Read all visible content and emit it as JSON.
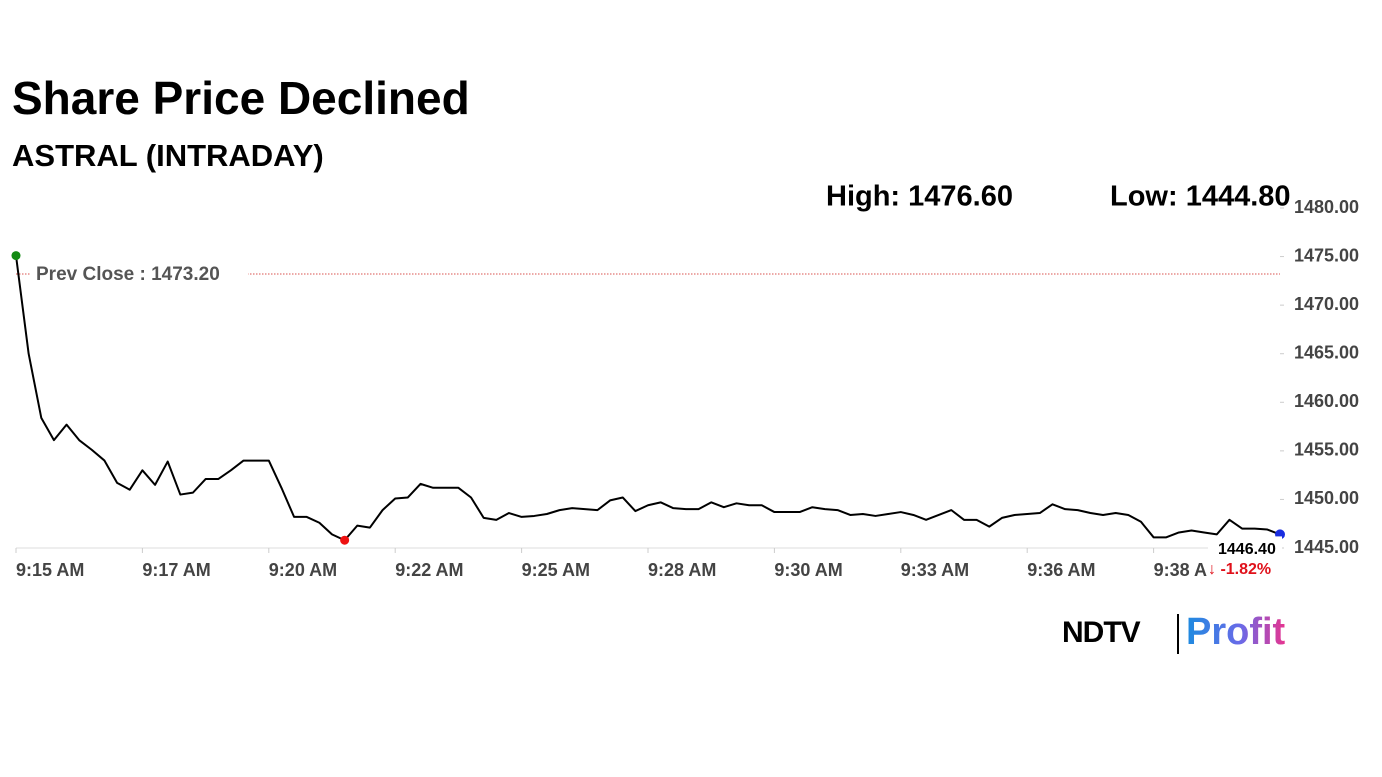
{
  "chart_data": {
    "type": "line",
    "title": "Share Price Declined",
    "subtitle": "ASTRAL (INTRADAY)",
    "high_label": "High: 1476.60",
    "low_label": "Low: 1444.80",
    "categories": [
      "9:15 AM",
      null,
      null,
      null,
      null,
      null,
      null,
      null,
      null,
      null,
      "9:17 AM",
      null,
      null,
      null,
      null,
      null,
      null,
      null,
      null,
      null,
      "9:20 AM",
      null,
      null,
      null,
      null,
      null,
      null,
      null,
      null,
      null,
      "9:22 AM",
      null,
      null,
      null,
      null,
      null,
      null,
      null,
      null,
      null,
      "9:25 AM",
      null,
      null,
      null,
      null,
      null,
      null,
      null,
      null,
      null,
      "9:28 AM",
      null,
      null,
      null,
      null,
      null,
      null,
      null,
      null,
      null,
      "9:30 AM",
      null,
      null,
      null,
      null,
      null,
      null,
      null,
      null,
      null,
      "9:33 AM",
      null,
      null,
      null,
      null,
      null,
      null,
      null,
      null,
      null,
      "9:36 AM",
      null,
      null,
      null,
      null,
      null,
      null,
      null,
      null,
      null,
      "9:38 AM",
      null,
      null,
      null,
      null,
      null,
      null,
      null,
      null,
      null,
      null
    ],
    "series": [
      {
        "name": "ASTRAL",
        "color": "#000000",
        "values": [
          1475.1,
          1465,
          1458.4,
          1456.1,
          1457.7,
          1456.1,
          1455.1,
          1454.0,
          1451.7,
          1451.0,
          1453.0,
          1451.5,
          1453.9,
          1450.5,
          1450.7,
          1452.1,
          1452.1,
          1453.0,
          1454.0,
          1454.0,
          1454.0,
          1451.2,
          1448.2,
          1448.2,
          1447.6,
          1446.4,
          1445.8,
          1447.3,
          1447.1,
          1448.9,
          1450.1,
          1450.2,
          1451.6,
          1451.2,
          1451.2,
          1451.2,
          1450.2,
          1448.1,
          1447.9,
          1448.6,
          1448.2,
          1448.3,
          1448.5,
          1448.9,
          1449.1,
          1449.0,
          1448.9,
          1449.9,
          1450.2,
          1448.8,
          1449.4,
          1449.7,
          1449.1,
          1449.0,
          1449.0,
          1449.7,
          1449.2,
          1449.6,
          1449.4,
          1449.4,
          1448.7,
          1448.7,
          1448.7,
          1449.2,
          1449.0,
          1448.9,
          1448.4,
          1448.5,
          1448.3,
          1448.5,
          1448.7,
          1448.4,
          1447.9,
          1448.4,
          1448.9,
          1447.9,
          1447.9,
          1447.2,
          1448.1,
          1448.4,
          1448.5,
          1448.6,
          1449.5,
          1449.0,
          1448.9,
          1448.6,
          1448.4,
          1448.6,
          1448.4,
          1447.7,
          1446.1,
          1446.1,
          1446.6,
          1446.8,
          1446.6,
          1446.4,
          1447.9,
          1447.0,
          1447.0,
          1446.9,
          1446.4
        ]
      }
    ],
    "ylim": [
      1445,
      1480
    ],
    "yticks": [
      {
        "value": 1445,
        "label": "1445.00"
      },
      {
        "value": 1450,
        "label": "1450.00"
      },
      {
        "value": 1455,
        "label": "1455.00"
      },
      {
        "value": 1460,
        "label": "1460.00"
      },
      {
        "value": 1465,
        "label": "1465.00"
      },
      {
        "value": 1470,
        "label": "1470.00"
      },
      {
        "value": 1475,
        "label": "1475.00"
      },
      {
        "value": 1480,
        "label": "1480.00"
      }
    ],
    "prev_close": {
      "value": 1473.2,
      "label": "Prev Close : 1473.20",
      "color": "#d9534f"
    },
    "last_label": "1446.40",
    "change_label": "↓ -1.82%",
    "change_color": "#e0101a",
    "start_color": "#138a13",
    "low_color": "#ee1111",
    "end_color": "#1a2ee0",
    "logo": {
      "brand": "NDTV",
      "product": "Profit"
    }
  }
}
